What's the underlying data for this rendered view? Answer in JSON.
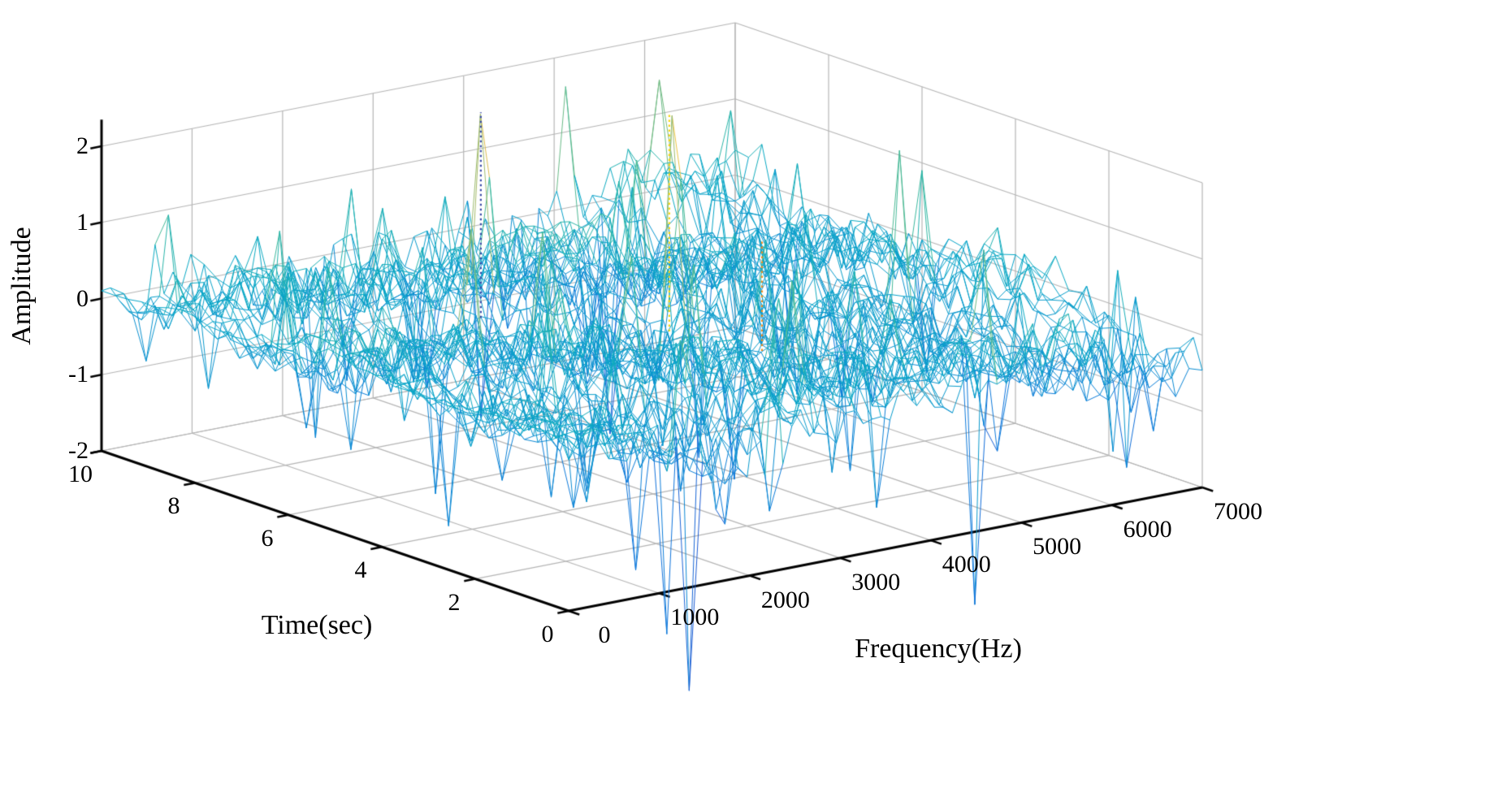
{
  "chart_data": {
    "type": "mesh3d",
    "title": "",
    "description": "Dense noisy 3D waterfall mesh of signal amplitude versus time and frequency; mostly blue/teal oscillations around 0 with sparse green spikes and a few tall yellow/orange spikes.",
    "axes": {
      "z": {
        "label": "Amplitude",
        "min": -2,
        "max": 2,
        "ticks": [
          "2",
          "1",
          "0",
          "-1",
          "-2"
        ],
        "tick_values": [
          2,
          1,
          0,
          -1,
          -2
        ]
      },
      "time": {
        "label": "Time(sec)",
        "min": 0,
        "max": 10,
        "ticks": [
          "10",
          "8",
          "6",
          "4",
          "2",
          "0"
        ],
        "tick_values": [
          10,
          8,
          6,
          4,
          2,
          0
        ]
      },
      "frequency": {
        "label": "Frequency(Hz)",
        "min": 0,
        "max": 7000,
        "ticks": [
          "0",
          "1000",
          "2000",
          "3000",
          "4000",
          "5000",
          "6000",
          "7000"
        ],
        "tick_values": [
          0,
          1000,
          2000,
          3000,
          4000,
          5000,
          6000,
          7000
        ]
      }
    },
    "grid": {
      "visible": true,
      "color": "#b5b5b5"
    },
    "axis_color": "#000000",
    "colormap": {
      "name": "parula",
      "cmin": -2.2,
      "cmax": 2.55,
      "stops": [
        [
          0,
          "#352a87"
        ],
        [
          0.12,
          "#2058d0"
        ],
        [
          0.25,
          "#0d75dc"
        ],
        [
          0.38,
          "#0a8fd0"
        ],
        [
          0.5,
          "#06a7c6"
        ],
        [
          0.62,
          "#33b8a1"
        ],
        [
          0.75,
          "#95bb72"
        ],
        [
          0.87,
          "#d9ba56"
        ],
        [
          0.95,
          "#fcce2e"
        ],
        [
          1,
          "#f9fb0e"
        ]
      ]
    },
    "spikes": [
      {
        "time": 7.5,
        "freq": 2900,
        "amplitude": 2.3,
        "stem_color": "#3a4ba8"
      },
      {
        "time": 5.5,
        "freq": 3950,
        "amplitude": 2.45,
        "stem_color": "#f5d511"
      },
      {
        "time": 4.0,
        "freq": 4200,
        "amplitude": 1.05,
        "stem_color": "#f08c1e"
      },
      {
        "time": 0.4,
        "freq": 1450,
        "amplitude": -3.45,
        "stem_color": ""
      },
      {
        "time": 0.3,
        "freq": 4600,
        "amplitude": -3.05,
        "stem_color": ""
      }
    ],
    "generator": {
      "seed": 90210,
      "time_lines": 36,
      "freq_points": 72,
      "base_offset": -0.18,
      "low_freq_lift": 0.38,
      "low_freq_decay": 650,
      "smoothing": [
        [
          0.22,
          850,
          1.1
        ],
        [
          0.18,
          1600,
          1.9
        ],
        [
          0.12,
          380,
          0.6
        ],
        [
          0.1,
          2400,
          2.3
        ]
      ],
      "jitter": 0.38,
      "noise_damp_freq": 320,
      "spike_probability": 0.07,
      "spike_min": 0.35,
      "spike_max": 1.65,
      "negative_bias": 0.55,
      "deep_spike_probability": 0.006,
      "deep_spike_extra": 1.8,
      "clamp": [
        -3.2,
        1.75
      ]
    },
    "projection": {
      "corner_t10_f0": [
        125,
        555
      ],
      "corner_t0_f0": [
        700,
        752
      ],
      "corner_t0_f7000": [
        1480,
        600
      ],
      "z_pixels_per_unit": 93.75,
      "z_base": -2,
      "z_axis_top": 2.35
    }
  }
}
